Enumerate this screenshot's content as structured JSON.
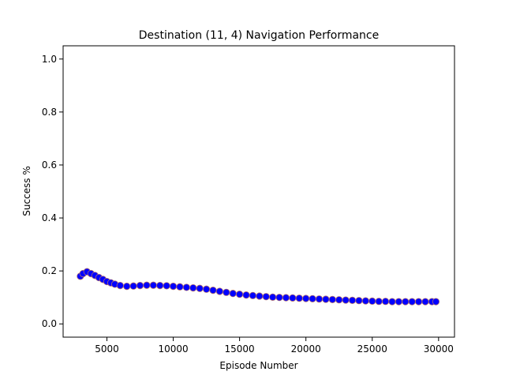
{
  "chart_data": {
    "type": "scatter",
    "title": "Destination (11, 4) Navigation Performance",
    "xlabel": "Episode Number",
    "ylabel": "Success %",
    "xlim": [
      1700,
      31200
    ],
    "ylim": [
      -0.05,
      1.05
    ],
    "xticks": [
      5000,
      10000,
      15000,
      20000,
      25000,
      30000
    ],
    "yticks": [
      0.0,
      0.2,
      0.4,
      0.6,
      0.8,
      1.0
    ],
    "xtick_labels": [
      "5000",
      "10000",
      "15000",
      "20000",
      "25000",
      "30000"
    ],
    "ytick_labels": [
      "0.0",
      "0.2",
      "0.4",
      "0.6",
      "0.8",
      "1.0"
    ],
    "grid": false,
    "marker": {
      "fill": "#0000ff",
      "edge": "#b07070"
    },
    "x": [
      3000,
      3200,
      3500,
      3800,
      4100,
      4400,
      4700,
      5000,
      5300,
      5600,
      6000,
      6500,
      7000,
      7500,
      8000,
      8500,
      9000,
      9500,
      10000,
      10500,
      11000,
      11500,
      12000,
      12500,
      13000,
      13500,
      14000,
      14500,
      15000,
      15500,
      16000,
      16500,
      17000,
      17500,
      18000,
      18500,
      19000,
      19500,
      20000,
      20500,
      21000,
      21500,
      22000,
      22500,
      23000,
      23500,
      24000,
      24500,
      25000,
      25500,
      26000,
      26500,
      27000,
      27500,
      28000,
      28500,
      29000,
      29500,
      29800
    ],
    "y": [
      0.18,
      0.19,
      0.197,
      0.19,
      0.183,
      0.175,
      0.168,
      0.16,
      0.155,
      0.15,
      0.145,
      0.142,
      0.143,
      0.145,
      0.146,
      0.146,
      0.145,
      0.144,
      0.142,
      0.14,
      0.138,
      0.136,
      0.134,
      0.131,
      0.127,
      0.123,
      0.119,
      0.115,
      0.112,
      0.109,
      0.107,
      0.105,
      0.103,
      0.101,
      0.1,
      0.099,
      0.098,
      0.097,
      0.096,
      0.095,
      0.094,
      0.093,
      0.092,
      0.091,
      0.09,
      0.089,
      0.088,
      0.087,
      0.086,
      0.085,
      0.085,
      0.084,
      0.084,
      0.084,
      0.084,
      0.084,
      0.084,
      0.084,
      0.084
    ]
  }
}
